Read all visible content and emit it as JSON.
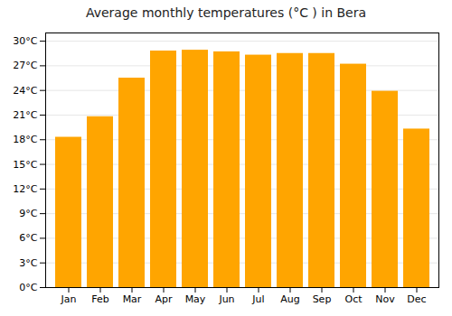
{
  "chart_data": {
    "type": "bar",
    "title": "Average monthly temperatures (°C ) in Bera",
    "categories": [
      "Jan",
      "Feb",
      "Mar",
      "Apr",
      "May",
      "Jun",
      "Jul",
      "Aug",
      "Sep",
      "Oct",
      "Nov",
      "Dec"
    ],
    "values": [
      18.3,
      20.8,
      25.5,
      28.8,
      28.9,
      28.7,
      28.3,
      28.5,
      28.5,
      27.2,
      23.9,
      19.3
    ],
    "color": "#FFA500",
    "ylim": [
      0,
      31
    ],
    "yticks": [
      {
        "value": 0,
        "label": "0°C"
      },
      {
        "value": 3,
        "label": "3°C"
      },
      {
        "value": 6,
        "label": "6°C"
      },
      {
        "value": 9,
        "label": "9°C"
      },
      {
        "value": 12,
        "label": "12°C"
      },
      {
        "value": 15,
        "label": "15°C"
      },
      {
        "value": 18,
        "label": "18°C"
      },
      {
        "value": 21,
        "label": "21°C"
      },
      {
        "value": 24,
        "label": "24°C"
      },
      {
        "value": 27,
        "label": "27°C"
      },
      {
        "value": 30,
        "label": "30°C"
      }
    ],
    "grid": true
  }
}
